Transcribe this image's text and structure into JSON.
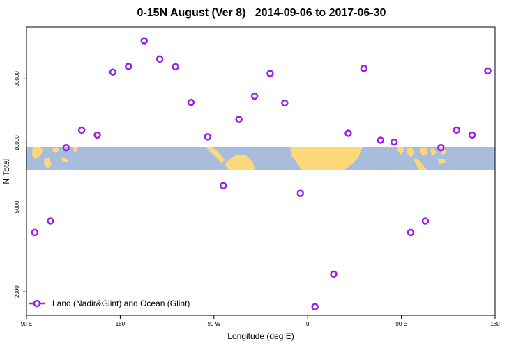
{
  "chart_data": {
    "type": "scatter",
    "title": "0-15N August (Ver 8)   2014-09-06 to 2017-06-30",
    "xlabel": "Longitude (deg E)",
    "ylabel": "N Total",
    "x_scale": "longitude",
    "y_scale": "log",
    "xlim": [
      90,
      540
    ],
    "ylim": [
      1550,
      35000
    ],
    "xticks": [
      {
        "value": 90,
        "label": "90 E"
      },
      {
        "value": 180,
        "label": "180"
      },
      {
        "value": 270,
        "label": "90 W"
      },
      {
        "value": 360,
        "label": "0"
      },
      {
        "value": 450,
        "label": "90 E"
      },
      {
        "value": 540,
        "label": "180"
      }
    ],
    "yticks": [
      {
        "value": 2000,
        "label": "2000"
      },
      {
        "value": 5000,
        "label": "5000"
      },
      {
        "value": 10000,
        "label": "10000"
      },
      {
        "value": 20000,
        "label": "20000"
      }
    ],
    "legend": {
      "position": "bottom-left"
    },
    "grid": false,
    "background_map": {
      "band_latitude": "0-15N",
      "ocean_color": "#a8bcdc",
      "land_color": "#fdd878"
    },
    "series": [
      {
        "name": "Land (Nadir&Glint) and Ocean (Glint)",
        "color": "#9a1ee8",
        "marker": "open-circle",
        "points": [
          {
            "x": 98,
            "y": 3800
          },
          {
            "x": 113,
            "y": 4300
          },
          {
            "x": 128,
            "y": 9500
          },
          {
            "x": 143,
            "y": 11500
          },
          {
            "x": 158,
            "y": 10900
          },
          {
            "x": 173,
            "y": 21500
          },
          {
            "x": 188,
            "y": 22900
          },
          {
            "x": 203,
            "y": 30200
          },
          {
            "x": 218,
            "y": 24800
          },
          {
            "x": 233,
            "y": 22800
          },
          {
            "x": 248,
            "y": 15500
          },
          {
            "x": 264,
            "y": 10700
          },
          {
            "x": 279,
            "y": 6300
          },
          {
            "x": 294,
            "y": 12900
          },
          {
            "x": 309,
            "y": 16600
          },
          {
            "x": 324,
            "y": 21200
          },
          {
            "x": 338,
            "y": 15400
          },
          {
            "x": 353,
            "y": 5800
          },
          {
            "x": 367,
            "y": 1700
          },
          {
            "x": 385,
            "y": 2420
          },
          {
            "x": 399,
            "y": 11100
          },
          {
            "x": 414,
            "y": 22400
          },
          {
            "x": 430,
            "y": 10300
          },
          {
            "x": 443,
            "y": 10100
          },
          {
            "x": 459,
            "y": 3800
          },
          {
            "x": 473,
            "y": 4300
          },
          {
            "x": 488,
            "y": 9500
          },
          {
            "x": 503,
            "y": 11500
          },
          {
            "x": 518,
            "y": 10900
          },
          {
            "x": 533,
            "y": 21800
          }
        ]
      }
    ]
  }
}
